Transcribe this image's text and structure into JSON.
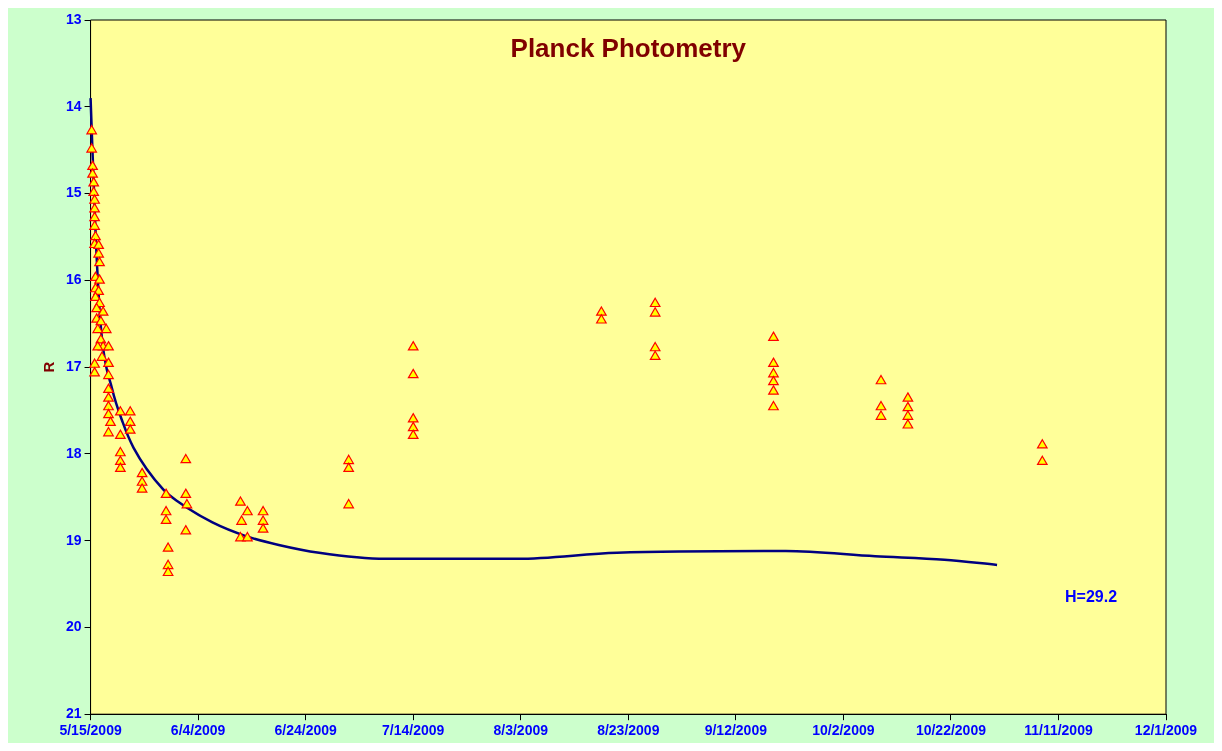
{
  "chart_data": {
    "type": "scatter",
    "title": "Planck Photometry",
    "ylabel": "R",
    "xlim": [
      "2009-05-15",
      "2009-12-01"
    ],
    "xticks": [
      {
        "value": "2009-05-15",
        "label": "5/15/2009"
      },
      {
        "value": "2009-06-04",
        "label": "6/4/2009"
      },
      {
        "value": "2009-06-24",
        "label": "6/24/2009"
      },
      {
        "value": "2009-07-14",
        "label": "7/14/2009"
      },
      {
        "value": "2009-08-03",
        "label": "8/3/2009"
      },
      {
        "value": "2009-08-23",
        "label": "8/23/2009"
      },
      {
        "value": "2009-09-12",
        "label": "9/12/2009"
      },
      {
        "value": "2009-10-02",
        "label": "10/2/2009"
      },
      {
        "value": "2009-10-22",
        "label": "10/22/2009"
      },
      {
        "value": "2009-11-11",
        "label": "11/11/2009"
      },
      {
        "value": "2009-12-01",
        "label": "12/1/2009"
      }
    ],
    "ylim": [
      21,
      13
    ],
    "yticks": [
      13,
      14,
      15,
      16,
      17,
      18,
      19,
      20,
      21
    ],
    "grid": false,
    "legend": false,
    "annotations": [
      "H=29.2"
    ],
    "series": [
      {
        "marker": "triangle",
        "color": "#ffff00",
        "x": [
          "2009-05-15T05:00",
          "2009-05-15T05:00",
          "2009-05-15T09:00",
          "2009-05-15T09:00",
          "2009-05-15T14:00",
          "2009-05-15T14:00",
          "2009-05-15T18:00",
          "2009-05-15T18:00",
          "2009-05-15T18:00",
          "2009-05-15T18:00",
          "2009-05-15T22:00",
          "2009-05-15T18:00",
          "2009-05-16T12:00",
          "2009-05-16T12:00",
          "2009-05-16T16:00",
          "2009-05-15T22:00",
          "2009-05-16T16:00",
          "2009-05-15T22:00",
          "2009-05-16T12:00",
          "2009-05-15T22:00",
          "2009-05-16T16:00",
          "2009-05-16T03:00",
          "2009-05-17T08:00",
          "2009-05-16T03:00",
          "2009-05-16T22:00",
          "2009-05-17T22:00",
          "2009-05-16T08:00",
          "2009-05-16T22:00",
          "2009-05-17T08:00",
          "2009-05-16T08:00",
          "2009-05-18T08:00",
          "2009-05-17T03:00",
          "2009-05-18T08:00",
          "2009-05-15T18:00",
          "2009-05-15T18:00",
          "2009-05-18T08:00",
          "2009-05-18T08:00",
          "2009-05-18T08:00",
          "2009-05-18T08:00",
          "2009-05-18T08:00",
          "2009-05-18T17:00",
          "2009-05-18T08:00",
          "2009-05-20T13:00",
          "2009-05-22T09:00",
          "2009-05-20T13:00",
          "2009-05-22T09:00",
          "2009-05-22T09:00",
          "2009-05-20T13:00",
          "2009-05-20T13:00",
          "2009-05-20T13:00",
          "2009-05-24T14:00",
          "2009-05-24T14:00",
          "2009-05-24T14:00",
          "2009-05-29T01:00",
          "2009-05-29T01:00",
          "2009-05-29T01:00",
          "2009-05-29T10:00",
          "2009-05-29T10:00",
          "2009-05-29T10:00",
          "2009-06-01T17:00",
          "2009-06-01T17:00",
          "2009-06-01T22:00",
          "2009-06-01T17:00",
          "2009-06-11T21:00",
          "2009-06-13T04:00",
          "2009-06-12T02:00",
          "2009-06-11T21:00",
          "2009-06-13T04:00",
          "2009-06-16T02:00",
          "2009-06-16T02:00",
          "2009-06-16T02:00",
          "2009-07-02",
          "2009-07-02",
          "2009-07-02",
          "2009-07-14",
          "2009-07-14",
          "2009-07-14",
          "2009-07-14",
          "2009-07-14",
          "2009-08-18",
          "2009-08-18",
          "2009-08-28",
          "2009-08-28",
          "2009-08-28",
          "2009-08-28",
          "2009-09-19",
          "2009-09-19",
          "2009-09-19",
          "2009-09-19",
          "2009-09-19",
          "2009-09-19",
          "2009-10-09",
          "2009-10-09",
          "2009-10-09",
          "2009-10-14",
          "2009-10-14",
          "2009-10-14",
          "2009-10-14",
          "2009-11-08",
          "2009-11-08"
        ],
        "values": [
          14.28,
          14.49,
          14.69,
          14.78,
          14.88,
          14.99,
          15.08,
          15.18,
          15.28,
          15.38,
          15.5,
          15.59,
          15.6,
          15.7,
          15.8,
          15.97,
          16.0,
          16.1,
          16.13,
          16.2,
          16.27,
          16.33,
          16.37,
          16.45,
          16.48,
          16.57,
          16.57,
          16.69,
          16.77,
          16.77,
          16.77,
          16.89,
          16.96,
          16.97,
          17.07,
          17.1,
          17.26,
          17.36,
          17.46,
          17.55,
          17.64,
          17.76,
          17.52,
          17.52,
          17.79,
          17.64,
          17.73,
          17.99,
          18.09,
          18.17,
          18.23,
          18.33,
          18.41,
          18.47,
          18.67,
          18.77,
          19.09,
          19.29,
          19.37,
          18.07,
          18.47,
          18.59,
          18.89,
          18.56,
          18.67,
          18.78,
          18.97,
          18.97,
          18.67,
          18.78,
          18.87,
          18.08,
          18.17,
          18.59,
          16.77,
          17.09,
          17.6,
          17.7,
          17.79,
          16.37,
          16.46,
          16.27,
          16.38,
          16.78,
          16.88,
          16.66,
          16.96,
          17.08,
          17.17,
          17.28,
          17.46,
          17.16,
          17.46,
          17.57,
          17.36,
          17.47,
          17.57,
          17.67,
          17.9,
          18.09
        ]
      },
      {
        "type": "line",
        "marker": "none",
        "line_style": "solid",
        "color": "#000080",
        "x": [
          "2009-05-15",
          "2009-05-16",
          "2009-05-17",
          "2009-05-19",
          "2009-05-21",
          "2009-05-23",
          "2009-05-28T12:00",
          "2009-05-31T12:00",
          "2009-06-06T16:00",
          "2009-06-13",
          "2009-06-19",
          "2009-06-26T12:00",
          "2009-07-08T19:00",
          "2009-08-02T10:00",
          "2009-08-20T22:00",
          "2009-09-21T07:00",
          "2009-10-07T22:00",
          "2009-10-20T19:00",
          "2009-10-30T14:00"
        ],
        "values": [
          13.9,
          15.56,
          16.6,
          17.25,
          17.64,
          17.93,
          18.41,
          18.56,
          18.79,
          18.95,
          19.05,
          19.14,
          19.21,
          19.21,
          19.14,
          19.12,
          19.18,
          19.22,
          19.28
        ]
      }
    ]
  }
}
